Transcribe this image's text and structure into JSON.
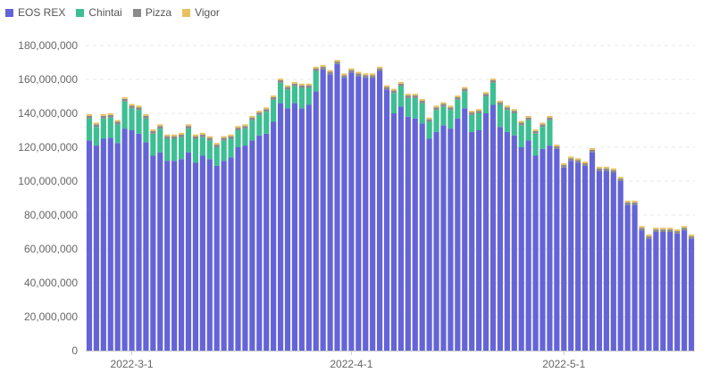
{
  "colors": {
    "eos_rex": "#6464d8",
    "chintai": "#3dbf93",
    "pizza": "#8a8a8a",
    "vigor": "#e8c160",
    "axis_text": "#666666",
    "grid": "#e8e8e8"
  },
  "chart_data": {
    "type": "bar",
    "stacked": true,
    "title": "",
    "xlabel": "",
    "ylabel": "",
    "ylim": [
      0,
      180000000
    ],
    "yticks": [
      0,
      20000000,
      40000000,
      60000000,
      80000000,
      100000000,
      120000000,
      140000000,
      160000000,
      180000000
    ],
    "ytick_labels": [
      "0",
      "20,000,000",
      "40,000,000",
      "60,000,000",
      "80,000,000",
      "100,000,000",
      "120,000,000",
      "140,000,000",
      "160,000,000",
      "180,000,000"
    ],
    "xtick_labels": [
      {
        "label": "2022-3-1",
        "index": 6
      },
      {
        "label": "2022-4-1",
        "index": 37
      },
      {
        "label": "2022-5-1",
        "index": 67
      }
    ],
    "grid": "horizontal-dashed",
    "legend_position": "top-left",
    "series": [
      {
        "name": "EOS REX",
        "color": "#6464d8",
        "values": [
          124000000,
          121000000,
          125000000,
          125500000,
          122500000,
          131000000,
          130000000,
          128000000,
          123000000,
          115000000,
          117000000,
          112000000,
          112000000,
          113000000,
          117000000,
          111000000,
          115000000,
          113000000,
          109000000,
          112000000,
          114000000,
          120000000,
          121000000,
          124000000,
          127000000,
          128000000,
          135000000,
          146000000,
          143000000,
          146000000,
          143000000,
          145000000,
          153000000,
          166000000,
          163000000,
          169000000,
          161000000,
          164000000,
          162000000,
          161000000,
          161000000,
          165000000,
          154000000,
          140000000,
          144000000,
          138000000,
          137000000,
          134000000,
          125000000,
          129000000,
          133000000,
          131000000,
          137000000,
          143000000,
          129000000,
          130000000,
          140000000,
          145000000,
          132000000,
          129000000,
          127000000,
          120000000,
          124000000,
          115000000,
          119000000,
          121000000,
          119000000,
          108000000,
          112000000,
          111000000,
          109000000,
          117000000,
          106000000,
          106000000,
          105000000,
          100000000,
          86000000,
          86000000,
          71000000,
          66000000,
          70000000,
          70000000,
          70000000,
          69000000,
          71000000,
          66000000
        ]
      },
      {
        "name": "Chintai",
        "color": "#3dbf93",
        "values": [
          13000000,
          11000000,
          12000000,
          12000000,
          11000000,
          16000000,
          13000000,
          14000000,
          14000000,
          13000000,
          14000000,
          13000000,
          13000000,
          13000000,
          14000000,
          14000000,
          11000000,
          11000000,
          11000000,
          12000000,
          11000000,
          10000000,
          10000000,
          12000000,
          12000000,
          13000000,
          13000000,
          12000000,
          11000000,
          10000000,
          12000000,
          10000000,
          12000000,
          0,
          0,
          0,
          0,
          0,
          0,
          0,
          0,
          0,
          0,
          12000000,
          12000000,
          11000000,
          12000000,
          12000000,
          10000000,
          13000000,
          11000000,
          11000000,
          11000000,
          10000000,
          10000000,
          10000000,
          10000000,
          13000000,
          13000000,
          13000000,
          13000000,
          13000000,
          12000000,
          13000000,
          13000000,
          15000000,
          0,
          0,
          0,
          0,
          0,
          0,
          0,
          0,
          0,
          0,
          0,
          0,
          0,
          0,
          0,
          0,
          0,
          0,
          0,
          0
        ]
      },
      {
        "name": "Pizza",
        "color": "#8a8a8a",
        "values": [
          1500000,
          1500000,
          1500000,
          1500000,
          1500000,
          1500000,
          1500000,
          1500000,
          1500000,
          1500000,
          1500000,
          1500000,
          1500000,
          1500000,
          1500000,
          1500000,
          1500000,
          1500000,
          1500000,
          1500000,
          1500000,
          1500000,
          1500000,
          1500000,
          1500000,
          1500000,
          1500000,
          1500000,
          1500000,
          1500000,
          1500000,
          1500000,
          1500000,
          1500000,
          1500000,
          1500000,
          1500000,
          1500000,
          1500000,
          1500000,
          1500000,
          1500000,
          1500000,
          1500000,
          1500000,
          1500000,
          1500000,
          1500000,
          1500000,
          1500000,
          1500000,
          1500000,
          1500000,
          1500000,
          1500000,
          1500000,
          1500000,
          1500000,
          1500000,
          1500000,
          1500000,
          1500000,
          1500000,
          1500000,
          1500000,
          1500000,
          1500000,
          1500000,
          1500000,
          1500000,
          1500000,
          1500000,
          1500000,
          1500000,
          1500000,
          1500000,
          1500000,
          1500000,
          1500000,
          1500000,
          1500000,
          1500000,
          1500000,
          1500000,
          1500000,
          1500000
        ]
      },
      {
        "name": "Vigor",
        "color": "#e8c160",
        "values": [
          1000000,
          1000000,
          1000000,
          1000000,
          1000000,
          1000000,
          1000000,
          1000000,
          1000000,
          1000000,
          1000000,
          1000000,
          1000000,
          1000000,
          1000000,
          1000000,
          1000000,
          1000000,
          1000000,
          1000000,
          1000000,
          1000000,
          1000000,
          1000000,
          1000000,
          1000000,
          1000000,
          1000000,
          1000000,
          1000000,
          1000000,
          1000000,
          1000000,
          1000000,
          1000000,
          1000000,
          1000000,
          1000000,
          1000000,
          1000000,
          1000000,
          1000000,
          1000000,
          1000000,
          1000000,
          1000000,
          1000000,
          1000000,
          1000000,
          1000000,
          1000000,
          1000000,
          1000000,
          1000000,
          1000000,
          1000000,
          1000000,
          1000000,
          1000000,
          1000000,
          1000000,
          1000000,
          1000000,
          1000000,
          1000000,
          1000000,
          1000000,
          1000000,
          1000000,
          1000000,
          1000000,
          1000000,
          1000000,
          1000000,
          1000000,
          1000000,
          1000000,
          1000000,
          1000000,
          1000000,
          1000000,
          1000000,
          1000000,
          1000000,
          1000000,
          1000000
        ]
      }
    ]
  }
}
